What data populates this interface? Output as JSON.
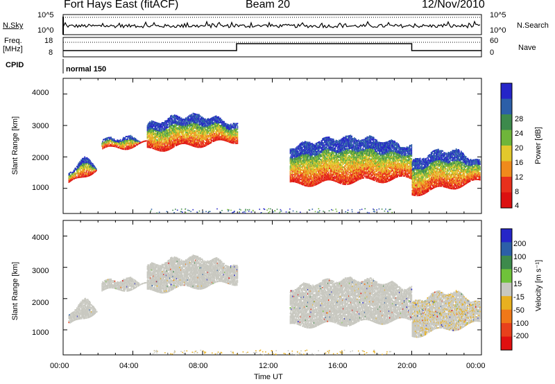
{
  "header": {
    "radar": "Fort Hays East (fitACF)",
    "beam": "Beam 20",
    "date": "12/Nov/2010"
  },
  "panels": {
    "nsky": {
      "label": "N.Sky",
      "top_tick": "10^5",
      "bottom_tick": "10^0",
      "right_label": "N.Search",
      "right_top": "10^5",
      "right_bottom": "10^0"
    },
    "freq": {
      "label_line1": "Freq.",
      "label_line2": "[MHz]",
      "ticks": [
        "18",
        "8"
      ],
      "right_label": "Nave",
      "right_ticks": [
        "60",
        "0"
      ]
    },
    "cpid": {
      "label": "CPID",
      "program": "normal 150"
    }
  },
  "chart_data": [
    {
      "type": "heatmap",
      "name": "power",
      "ylabel": "Slant Range [km]",
      "yticks": [
        "4000",
        "3000",
        "2000",
        "1000"
      ],
      "ylim": [
        200,
        4500
      ],
      "xlim": [
        0,
        24
      ],
      "colorbar": {
        "label": "Power [dB]",
        "ticks": [
          "28",
          "24",
          "20",
          "16",
          "12",
          "8",
          "4"
        ],
        "colors": [
          "#2525c8",
          "#2c5fa8",
          "#3d8a4c",
          "#6fb53a",
          "#e2c82c",
          "#f08a1c",
          "#e8301c",
          "#dc1010"
        ]
      },
      "regions": [
        {
          "t": [
            0.3,
            2.2
          ],
          "r_low": [
            1100,
            1700
          ],
          "r_high": [
            1450,
            1900
          ]
        },
        {
          "t": [
            2.2,
            4.8
          ],
          "r_low": [
            2200,
            2400
          ],
          "r_high": [
            2500,
            2600
          ]
        },
        {
          "t": [
            4.8,
            10.0
          ],
          "r_low": [
            2200,
            2500
          ],
          "r_high": [
            3000,
            3300
          ]
        },
        {
          "t": [
            13.0,
            20.0
          ],
          "r_low": [
            1100,
            1300
          ],
          "r_high": [
            2300,
            2600
          ]
        },
        {
          "t": [
            20.0,
            23.9
          ],
          "r_low": [
            800,
            1200
          ],
          "r_high": [
            1800,
            2200
          ]
        }
      ]
    },
    {
      "type": "heatmap",
      "name": "velocity",
      "ylabel": "Slant Range [km]",
      "yticks": [
        "4000",
        "3000",
        "2000",
        "1000"
      ],
      "ylim": [
        200,
        4500
      ],
      "xlim": [
        0,
        24
      ],
      "xticks": [
        "00:00",
        "04:00",
        "08:00",
        "12:00",
        "16:00",
        "20:00",
        "00:00"
      ],
      "xlabel": "Time UT",
      "colorbar": {
        "label": "Velocity [m s⁻¹]",
        "ticks": [
          "200",
          "100",
          "50",
          "15",
          "-15",
          "-50",
          "-100",
          "-200"
        ],
        "colors": [
          "#2525c8",
          "#2c5fa8",
          "#3d8a4c",
          "#6fc23a",
          "#c8c8c0",
          "#e8b020",
          "#f07818",
          "#e8401c",
          "#e01010"
        ]
      }
    }
  ]
}
